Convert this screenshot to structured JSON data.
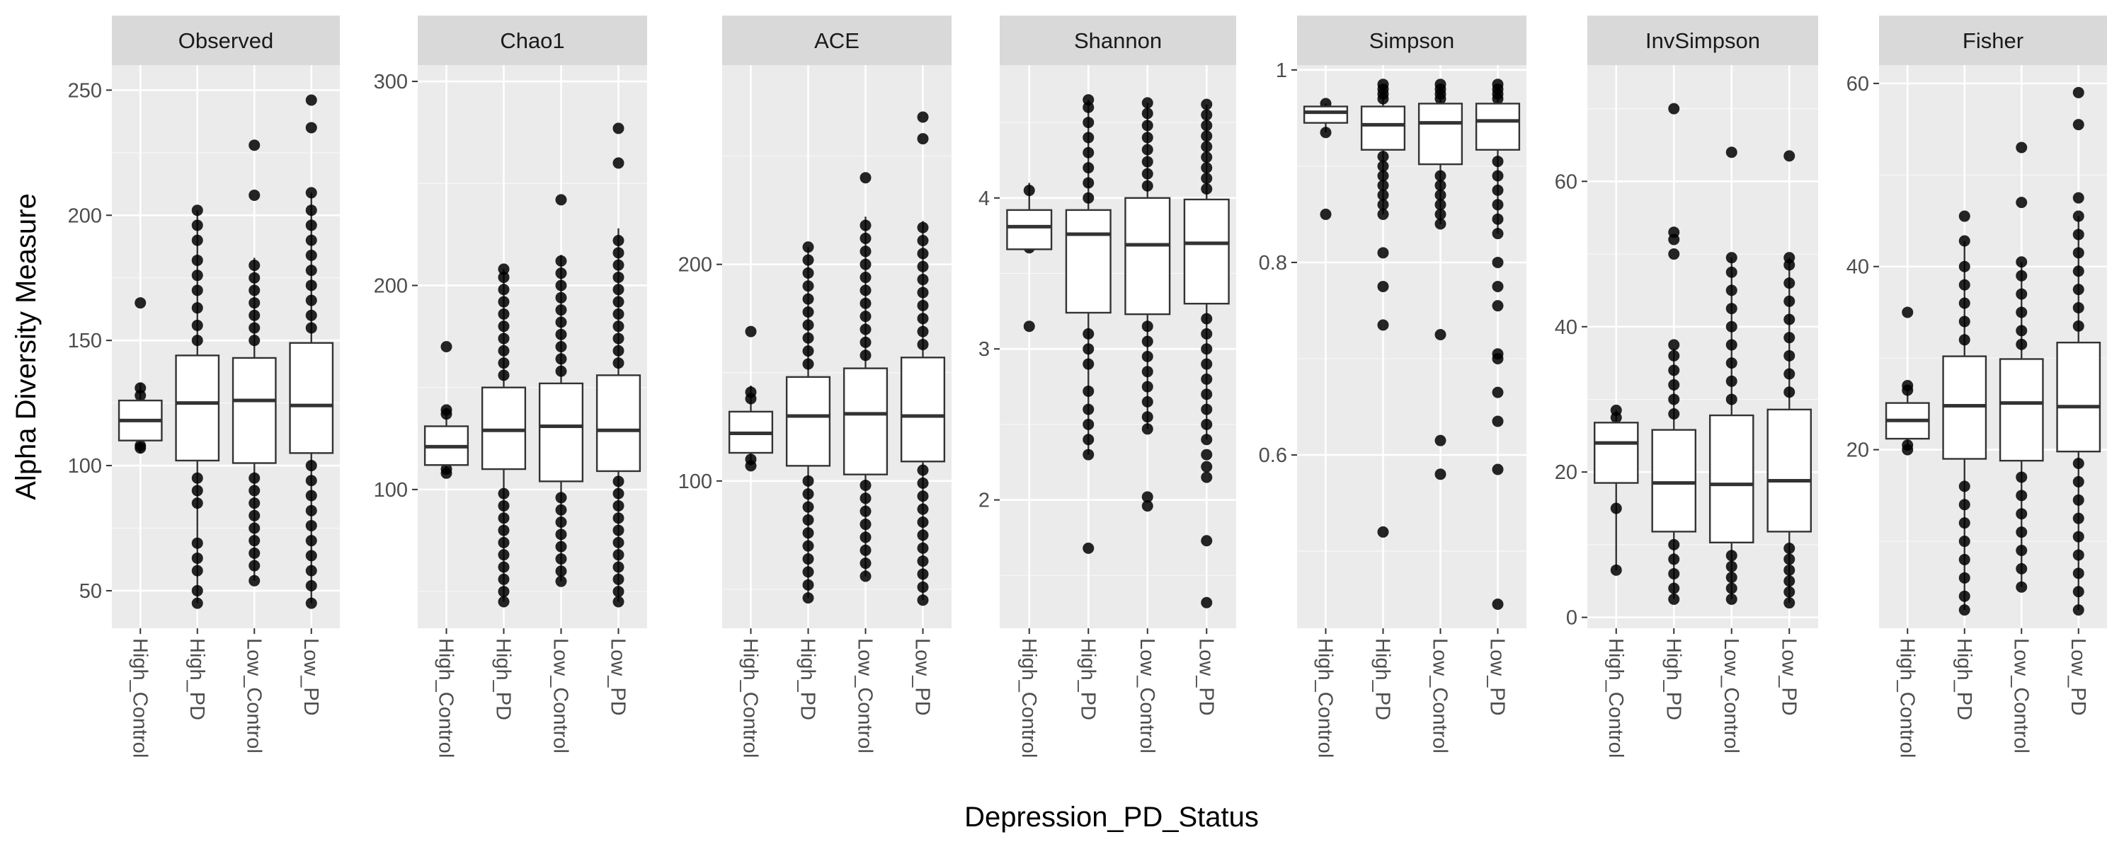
{
  "chart_data": {
    "type": "boxplot",
    "facet_layout": "single-row, free y scales",
    "xlabel": "Depression_PD_Status",
    "ylabel": "Alpha Diversity Measure",
    "categories": [
      "High_Control",
      "High_PD",
      "Low_Control",
      "Low_PD"
    ],
    "grid": true,
    "colors": {
      "panel_bg": "#ebebeb",
      "strip_bg": "#d9d9d9",
      "grid": "#ffffff",
      "box_line": "#333333",
      "point": "#000000"
    },
    "panels": [
      {
        "measure": "Observed",
        "ylim": [
          35,
          260
        ],
        "yticks": [
          50,
          100,
          150,
          200,
          250
        ],
        "boxes": [
          {
            "q1": 110,
            "median": 118,
            "q3": 126,
            "whisker_low": 105,
            "whisker_high": 133,
            "outliers": [
              165,
              107,
              108,
              128,
              131
            ]
          },
          {
            "q1": 102,
            "median": 125,
            "q3": 144,
            "whisker_low": 45,
            "whisker_high": 202,
            "outliers": [
              45,
              50,
              58,
              63,
              69,
              85,
              90,
              95,
              150,
              156,
              163,
              170,
              176,
              182,
              190,
              196,
              202
            ]
          },
          {
            "q1": 101,
            "median": 126,
            "q3": 143,
            "whisker_low": 54,
            "whisker_high": 183,
            "outliers": [
              208,
              228,
              54,
              60,
              65,
              70,
              75,
              80,
              85,
              90,
              95,
              150,
              155,
              160,
              165,
              170,
              175,
              180
            ]
          },
          {
            "q1": 105,
            "median": 124,
            "q3": 149,
            "whisker_low": 45,
            "whisker_high": 209,
            "outliers": [
              235,
              246,
              45,
              52,
              58,
              64,
              70,
              76,
              82,
              88,
              94,
              100,
              155,
              160,
              166,
              172,
              178,
              184,
              190,
              196,
              202,
              209
            ]
          }
        ]
      },
      {
        "measure": "Chao1",
        "ylim": [
          32,
          308
        ],
        "yticks": [
          100,
          200,
          300
        ],
        "boxes": [
          {
            "q1": 112,
            "median": 121,
            "q3": 131,
            "whisker_low": 108,
            "whisker_high": 140,
            "outliers": [
              170,
              108,
              110,
              137,
              139
            ]
          },
          {
            "q1": 110,
            "median": 129,
            "q3": 150,
            "whisker_low": 45,
            "whisker_high": 208,
            "outliers": [
              45,
              50,
              56,
              62,
              68,
              74,
              80,
              86,
              92,
              98,
              156,
              162,
              168,
              174,
              180,
              186,
              192,
              198,
              204,
              208
            ]
          },
          {
            "q1": 104,
            "median": 131,
            "q3": 152,
            "whisker_low": 55,
            "whisker_high": 215,
            "outliers": [
              242,
              55,
              60,
              66,
              72,
              78,
              84,
              90,
              96,
              158,
              164,
              170,
              176,
              182,
              188,
              194,
              200,
              206,
              212
            ]
          },
          {
            "q1": 109,
            "median": 129,
            "q3": 156,
            "whisker_low": 45,
            "whisker_high": 228,
            "outliers": [
              260,
              277,
              45,
              50,
              56,
              62,
              68,
              74,
              80,
              86,
              92,
              98,
              104,
              162,
              168,
              174,
              180,
              186,
              192,
              198,
              204,
              210,
              216,
              222
            ]
          }
        ]
      },
      {
        "measure": "ACE",
        "ylim": [
          32,
          292
        ],
        "yticks": [
          100,
          200
        ],
        "boxes": [
          {
            "q1": 113,
            "median": 122,
            "q3": 132,
            "whisker_low": 107,
            "whisker_high": 144,
            "outliers": [
              169,
              107,
              110,
              138,
              141
            ]
          },
          {
            "q1": 107,
            "median": 130,
            "q3": 148,
            "whisker_low": 46,
            "whisker_high": 208,
            "outliers": [
              46,
              52,
              58,
              64,
              70,
              76,
              82,
              88,
              94,
              100,
              154,
              160,
              166,
              172,
              178,
              184,
              190,
              196,
              202,
              208
            ]
          },
          {
            "q1": 103,
            "median": 131,
            "q3": 152,
            "whisker_low": 56,
            "whisker_high": 222,
            "outliers": [
              240,
              56,
              62,
              68,
              74,
              80,
              86,
              92,
              98,
              158,
              164,
              170,
              176,
              182,
              188,
              194,
              200,
              206,
              212,
              218
            ]
          },
          {
            "q1": 109,
            "median": 130,
            "q3": 157,
            "whisker_low": 45,
            "whisker_high": 220,
            "outliers": [
              258,
              268,
              45,
              51,
              57,
              63,
              69,
              75,
              81,
              87,
              93,
              99,
              105,
              163,
              169,
              175,
              181,
              187,
              193,
              199,
              205,
              211,
              217
            ]
          }
        ]
      },
      {
        "measure": "Shannon",
        "ylim": [
          1.15,
          4.88
        ],
        "yticks": [
          2,
          3,
          4
        ],
        "boxes": [
          {
            "q1": 3.66,
            "median": 3.81,
            "q3": 3.92,
            "whisker_low": 3.65,
            "whisker_high": 4.1,
            "outliers": [
              3.15,
              3.67,
              4.05
            ]
          },
          {
            "q1": 3.24,
            "median": 3.76,
            "q3": 3.92,
            "whisker_low": 2.3,
            "whisker_high": 4.65,
            "outliers": [
              1.68,
              2.3,
              2.4,
              2.5,
              2.6,
              2.72,
              2.9,
              3.0,
              3.1,
              4.0,
              4.1,
              4.2,
              4.3,
              4.4,
              4.5,
              4.6,
              4.65
            ]
          },
          {
            "q1": 3.23,
            "median": 3.69,
            "q3": 4.0,
            "whisker_low": 2.47,
            "whisker_high": 4.63,
            "outliers": [
              1.96,
              2.02,
              2.47,
              2.55,
              2.65,
              2.75,
              2.85,
              2.95,
              3.05,
              3.15,
              4.08,
              4.16,
              4.24,
              4.32,
              4.4,
              4.48,
              4.56,
              4.63
            ]
          },
          {
            "q1": 3.3,
            "median": 3.7,
            "q3": 3.99,
            "whisker_low": 2.4,
            "whisker_high": 4.62,
            "outliers": [
              1.32,
              1.73,
              2.15,
              2.22,
              2.3,
              2.4,
              2.5,
              2.6,
              2.7,
              2.8,
              2.9,
              3.0,
              3.1,
              3.2,
              4.06,
              4.13,
              4.2,
              4.27,
              4.34,
              4.41,
              4.48,
              4.55,
              4.62
            ]
          }
        ]
      },
      {
        "measure": "Simpson",
        "ylim": [
          0.42,
          1.005
        ],
        "yticks": [
          0.6,
          0.8,
          1.0
        ],
        "boxes": [
          {
            "q1": 0.945,
            "median": 0.956,
            "q3": 0.962,
            "whisker_low": 0.935,
            "whisker_high": 0.965,
            "outliers": [
              0.85,
              0.935,
              0.965
            ]
          },
          {
            "q1": 0.917,
            "median": 0.943,
            "q3": 0.962,
            "whisker_low": 0.85,
            "whisker_high": 0.985,
            "outliers": [
              0.52,
              0.735,
              0.775,
              0.81,
              0.85,
              0.86,
              0.87,
              0.88,
              0.89,
              0.9,
              0.91,
              0.97,
              0.975,
              0.98,
              0.985
            ]
          },
          {
            "q1": 0.902,
            "median": 0.945,
            "q3": 0.965,
            "whisker_low": 0.84,
            "whisker_high": 0.985,
            "outliers": [
              0.58,
              0.615,
              0.725,
              0.84,
              0.85,
              0.86,
              0.87,
              0.88,
              0.89,
              0.97,
              0.975,
              0.98,
              0.985
            ]
          },
          {
            "q1": 0.917,
            "median": 0.947,
            "q3": 0.965,
            "whisker_low": 0.83,
            "whisker_high": 0.985,
            "outliers": [
              0.445,
              0.585,
              0.635,
              0.665,
              0.7,
              0.705,
              0.755,
              0.775,
              0.8,
              0.83,
              0.845,
              0.86,
              0.875,
              0.89,
              0.905,
              0.97,
              0.975,
              0.98,
              0.985
            ]
          }
        ]
      },
      {
        "measure": "InvSimpson",
        "ylim": [
          -1.5,
          76
        ],
        "yticks": [
          0,
          20,
          40,
          60
        ],
        "boxes": [
          {
            "q1": 18.5,
            "median": 24.0,
            "q3": 26.8,
            "whisker_low": 6.5,
            "whisker_high": 28.5,
            "outliers": [
              15.0,
              6.5,
              27.5,
              28.5
            ]
          },
          {
            "q1": 11.8,
            "median": 18.5,
            "q3": 25.8,
            "whisker_low": 2.5,
            "whisker_high": 37.0,
            "outliers": [
              70.0,
              53.0,
              52.0,
              50.0,
              37.5,
              36.0,
              34.0,
              32.0,
              30.0,
              28.0,
              2.5,
              4.0,
              6.0,
              8.0,
              10.0
            ]
          },
          {
            "q1": 10.3,
            "median": 18.3,
            "q3": 27.8,
            "whisker_low": 2.5,
            "whisker_high": 49.5,
            "outliers": [
              64.0,
              2.5,
              4.0,
              5.5,
              7.0,
              8.5,
              30.0,
              32.5,
              35.0,
              37.5,
              40.0,
              42.5,
              45.0,
              47.5,
              49.5
            ]
          },
          {
            "q1": 11.8,
            "median": 18.8,
            "q3": 28.6,
            "whisker_low": 2.0,
            "whisker_high": 49.5,
            "outliers": [
              63.5,
              2.0,
              3.5,
              5.0,
              6.5,
              8.0,
              9.5,
              31.0,
              33.5,
              36.0,
              38.5,
              41.0,
              43.5,
              46.0,
              48.5,
              49.5
            ]
          }
        ]
      },
      {
        "measure": "Fisher",
        "ylim": [
          0.5,
          62
        ],
        "yticks": [
          20,
          40,
          60
        ],
        "boxes": [
          {
            "q1": 21.2,
            "median": 23.2,
            "q3": 25.1,
            "whisker_low": 20.0,
            "whisker_high": 27.0,
            "outliers": [
              35.0,
              20.0,
              20.5,
              26.5,
              27.0
            ]
          },
          {
            "q1": 19.0,
            "median": 24.8,
            "q3": 30.2,
            "whisker_low": 2.5,
            "whisker_high": 42.8,
            "outliers": [
              45.5,
              2.5,
              4.0,
              6.0,
              8.0,
              10.0,
              12.0,
              14.0,
              16.0,
              32.0,
              34.0,
              36.0,
              38.0,
              40.0,
              42.8
            ]
          },
          {
            "q1": 18.8,
            "median": 25.1,
            "q3": 29.9,
            "whisker_low": 5.0,
            "whisker_high": 40.5,
            "outliers": [
              53.0,
              47.0,
              5.0,
              7.0,
              9.0,
              11.0,
              13.0,
              15.0,
              17.0,
              31.5,
              33.0,
              35.0,
              37.0,
              39.0,
              40.5
            ]
          },
          {
            "q1": 19.8,
            "median": 24.7,
            "q3": 31.7,
            "whisker_low": 2.5,
            "whisker_high": 45.5,
            "outliers": [
              59.0,
              55.5,
              47.5,
              2.5,
              4.5,
              6.5,
              8.5,
              10.5,
              12.5,
              14.5,
              16.5,
              18.5,
              33.5,
              35.5,
              37.5,
              39.5,
              41.5,
              43.5,
              45.5
            ]
          }
        ]
      }
    ]
  }
}
